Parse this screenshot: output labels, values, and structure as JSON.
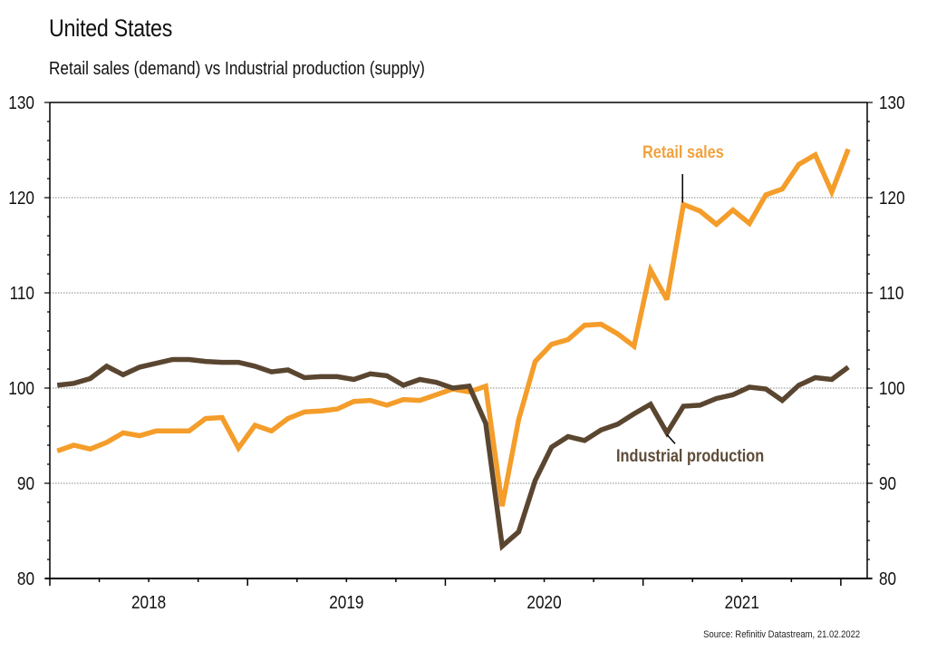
{
  "header": {
    "title": "United States",
    "subtitle": "Retail sales (demand) vs Industrial production (supply)"
  },
  "footer": {
    "source": "Source: Refinitiv Datastream, 21.02.2022"
  },
  "chart_data": {
    "type": "line",
    "title": "United States",
    "subtitle": "Retail sales (demand) vs Industrial production (supply)",
    "xlabel": "",
    "ylabel": "",
    "ylim": [
      80,
      130
    ],
    "yticks": [
      80,
      90,
      100,
      110,
      120,
      130
    ],
    "y_minor_step": 2,
    "x_start": "2018-01",
    "x_end_months": 49.6,
    "x_tick_labels": [
      "2018",
      "2019",
      "2020",
      "2021"
    ],
    "grid": "horizontal dotted at major y ticks",
    "dual_axis_same_scale": true,
    "x": [
      "2018-01",
      "2018-02",
      "2018-03",
      "2018-04",
      "2018-05",
      "2018-06",
      "2018-07",
      "2018-08",
      "2018-09",
      "2018-10",
      "2018-11",
      "2018-12",
      "2019-01",
      "2019-02",
      "2019-03",
      "2019-04",
      "2019-05",
      "2019-06",
      "2019-07",
      "2019-08",
      "2019-09",
      "2019-10",
      "2019-11",
      "2019-12",
      "2020-01",
      "2020-02",
      "2020-03",
      "2020-04",
      "2020-05",
      "2020-06",
      "2020-07",
      "2020-08",
      "2020-09",
      "2020-10",
      "2020-11",
      "2020-12",
      "2021-01",
      "2021-02",
      "2021-03",
      "2021-04",
      "2021-05",
      "2021-06",
      "2021-07",
      "2021-08",
      "2021-09",
      "2021-10",
      "2021-11",
      "2021-12",
      "2022-01"
    ],
    "series": [
      {
        "name": "Retail sales",
        "color": "#F49D2A",
        "label_color": "#F0A23C",
        "values": [
          93.4,
          94.0,
          93.6,
          94.3,
          95.3,
          95.0,
          95.5,
          95.5,
          95.5,
          96.8,
          96.9,
          93.7,
          96.1,
          95.5,
          96.8,
          97.5,
          97.6,
          97.8,
          98.6,
          98.7,
          98.2,
          98.8,
          98.7,
          99.3,
          99.9,
          99.6,
          100.2,
          87.6,
          96.7,
          102.8,
          104.6,
          105.1,
          106.6,
          106.7,
          105.7,
          104.4,
          112.4,
          109.3,
          119.3,
          118.6,
          117.2,
          118.7,
          117.3,
          120.3,
          120.9,
          123.5,
          124.5,
          120.6,
          125.1
        ],
        "annotation": {
          "text": "Retail sales",
          "points_to": "2021-03"
        }
      },
      {
        "name": "Industrial production",
        "color": "#5A4630",
        "label_color": "#5E4B38",
        "values": [
          100.3,
          100.5,
          101.0,
          102.3,
          101.4,
          102.2,
          102.6,
          103.0,
          103.0,
          102.8,
          102.7,
          102.7,
          102.3,
          101.7,
          101.9,
          101.1,
          101.2,
          101.2,
          100.9,
          101.5,
          101.3,
          100.3,
          100.9,
          100.6,
          100.0,
          100.2,
          96.3,
          83.4,
          84.9,
          90.3,
          93.8,
          94.9,
          94.5,
          95.6,
          96.2,
          97.3,
          98.3,
          95.3,
          98.1,
          98.2,
          98.9,
          99.3,
          100.1,
          99.9,
          98.7,
          100.3,
          101.1,
          100.9,
          102.2
        ],
        "annotation": {
          "text": "Industrial production",
          "points_to": "2021-02"
        }
      }
    ]
  }
}
